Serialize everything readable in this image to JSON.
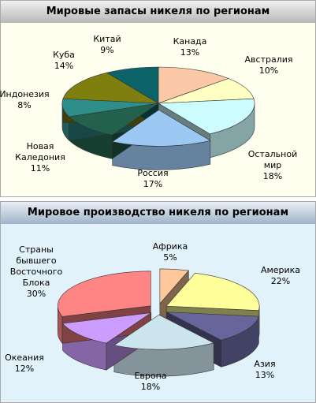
{
  "chart_data": [
    {
      "type": "pie",
      "title": "Мировые запасы никеля по регионам",
      "categories": [
        "Канада",
        "Австралия",
        "Остальной мир",
        "Россия",
        "Новая Каледония",
        "Индонезия",
        "Куба",
        "Китай"
      ],
      "values": [
        13,
        10,
        18,
        17,
        11,
        8,
        14,
        9
      ],
      "value_labels": [
        "13%",
        "10%",
        "18%",
        "17%",
        "11%",
        "8%",
        "14%",
        "9%"
      ],
      "colors": [
        "#fac8a6",
        "#ffffc4",
        "#cdfcff",
        "#9cc8f4",
        "#23614c",
        "#2e8f8a",
        "#7f7f10",
        "#0c6468"
      ]
    },
    {
      "type": "pie",
      "title": "Мировое производство никеля по регионам",
      "categories": [
        "Африка",
        "Америка",
        "Азия",
        "Европа",
        "Океания",
        "Страны бывшего Восточного Блока"
      ],
      "values": [
        5,
        22,
        13,
        18,
        12,
        30
      ],
      "value_labels": [
        "5%",
        "22%",
        "13%",
        "18%",
        "12%",
        "30%"
      ],
      "colors": [
        "#ffc89c",
        "#ffff9c",
        "#66669c",
        "#cce4ee",
        "#cc9cff",
        "#ff8484"
      ]
    }
  ]
}
